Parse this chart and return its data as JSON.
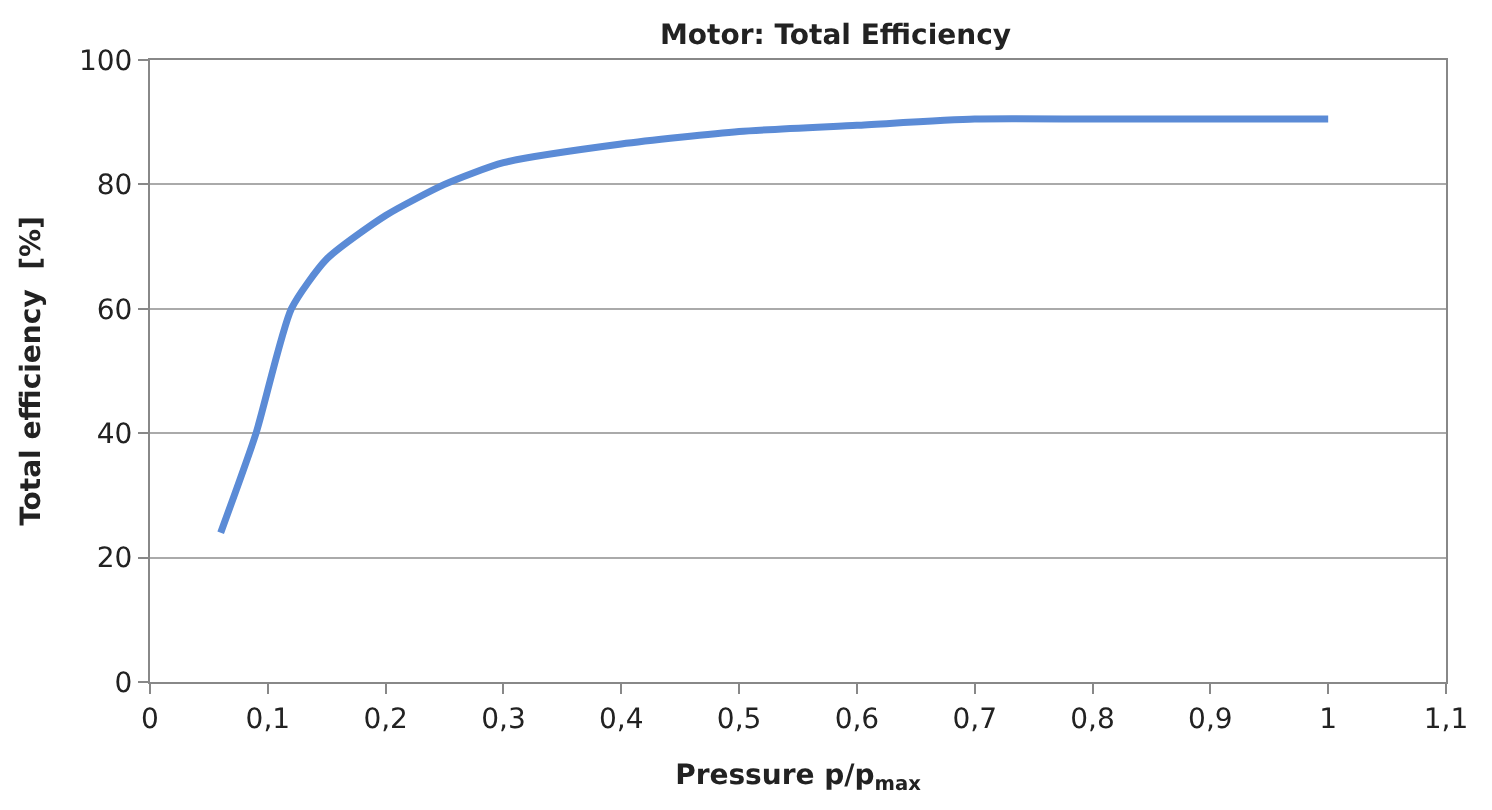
{
  "chart_data": {
    "type": "line",
    "title": "Motor: Total Efficiency",
    "xlabel": "Pressure p/p$_{max}$",
    "ylabel": "Total efficiency  [%]",
    "x": [
      0.06,
      0.09,
      0.12,
      0.15,
      0.2,
      0.25,
      0.3,
      0.4,
      0.5,
      0.6,
      0.7,
      0.8,
      0.9,
      1
    ],
    "series": [
      {
        "color": "#5b8bd6",
        "values": [
          24,
          40,
          60,
          68,
          75,
          80,
          83.5,
          86.5,
          88.5,
          89.5,
          90.5,
          90.5,
          90.5,
          90.5
        ]
      }
    ],
    "xlim": [
      0,
      1.1
    ],
    "ylim": [
      0,
      100
    ],
    "xticks": [
      0,
      {
        "value": 0.1,
        "label": "0,1"
      },
      {
        "value": 0.2,
        "label": "0,2"
      },
      {
        "value": 0.3,
        "label": "0,3"
      },
      {
        "value": 0.4,
        "label": "0,4"
      },
      {
        "value": 0.5,
        "label": "0,5"
      },
      {
        "value": 0.6,
        "label": "0,6"
      },
      {
        "value": 0.7,
        "label": "0,7"
      },
      {
        "value": 0.8,
        "label": "0,8"
      },
      {
        "value": 0.9,
        "label": "0,9"
      },
      1,
      {
        "value": 1.1,
        "label": "1,1"
      }
    ],
    "yticks": [
      0,
      20,
      40,
      60,
      80,
      100
    ],
    "grid": "y",
    "marker": "none",
    "line_style": "solid"
  }
}
